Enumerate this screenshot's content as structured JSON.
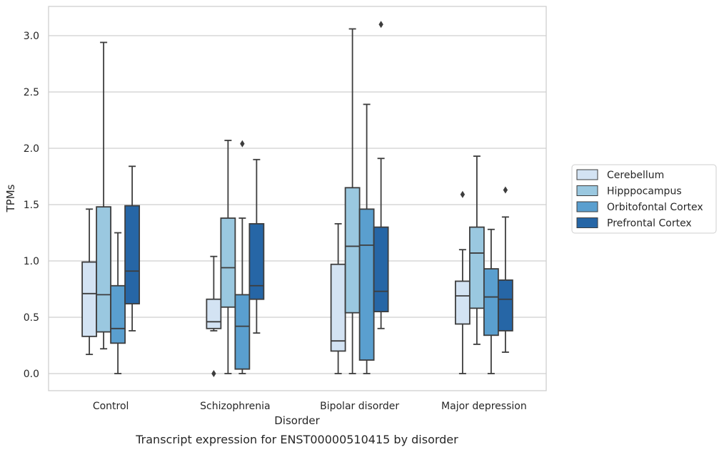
{
  "chart_data": {
    "type": "boxplot",
    "caption": "Transcript expression for ENST00000510415 by disorder",
    "xlabel": "Disorder",
    "ylabel": "TPMs",
    "ylim": [
      -0.15,
      3.25
    ],
    "yticks": [
      "0.0",
      "0.5",
      "1.0",
      "1.5",
      "2.0",
      "2.5",
      "3.0"
    ],
    "grid": "horizontal",
    "legend_position": "right",
    "categories": [
      "Control",
      "Schizophrenia",
      "Bipolar disorder",
      "Major depression"
    ],
    "series": [
      {
        "name": "Cerebellum",
        "color": "#d3e3f3",
        "boxes": [
          {
            "whislo": 0.17,
            "q1": 0.33,
            "med": 0.71,
            "q3": 0.99,
            "whishi": 1.46,
            "fliers": []
          },
          {
            "whislo": 0.38,
            "q1": 0.4,
            "med": 0.46,
            "q3": 0.66,
            "whishi": 1.04,
            "fliers": [
              0.0
            ]
          },
          {
            "whislo": 0.0,
            "q1": 0.2,
            "med": 0.29,
            "q3": 0.97,
            "whishi": 1.33,
            "fliers": []
          },
          {
            "whislo": 0.0,
            "q1": 0.44,
            "med": 0.69,
            "q3": 0.82,
            "whishi": 1.1,
            "fliers": [
              1.59
            ]
          }
        ]
      },
      {
        "name": "Hipppocampus",
        "color": "#9ac8e0",
        "boxes": [
          {
            "whislo": 0.22,
            "q1": 0.37,
            "med": 0.7,
            "q3": 1.48,
            "whishi": 2.94,
            "fliers": []
          },
          {
            "whislo": 0.0,
            "q1": 0.59,
            "med": 0.94,
            "q3": 1.38,
            "whishi": 2.07,
            "fliers": []
          },
          {
            "whislo": 0.0,
            "q1": 0.54,
            "med": 1.13,
            "q3": 1.65,
            "whishi": 3.06,
            "fliers": []
          },
          {
            "whislo": 0.26,
            "q1": 0.58,
            "med": 1.07,
            "q3": 1.3,
            "whishi": 1.93,
            "fliers": []
          }
        ]
      },
      {
        "name": "Orbitofontal Cortex",
        "color": "#5a9fcf",
        "boxes": [
          {
            "whislo": 0.0,
            "q1": 0.27,
            "med": 0.4,
            "q3": 0.78,
            "whishi": 1.25,
            "fliers": []
          },
          {
            "whislo": 0.0,
            "q1": 0.04,
            "med": 0.42,
            "q3": 0.7,
            "whishi": 1.38,
            "fliers": [
              2.04
            ]
          },
          {
            "whislo": 0.0,
            "q1": 0.12,
            "med": 1.14,
            "q3": 1.46,
            "whishi": 2.39,
            "fliers": []
          },
          {
            "whislo": 0.0,
            "q1": 0.34,
            "med": 0.68,
            "q3": 0.93,
            "whishi": 1.28,
            "fliers": []
          }
        ]
      },
      {
        "name": "Prefrontal Cortex",
        "color": "#2666a6",
        "boxes": [
          {
            "whislo": 0.38,
            "q1": 0.62,
            "med": 0.91,
            "q3": 1.49,
            "whishi": 1.84,
            "fliers": []
          },
          {
            "whislo": 0.36,
            "q1": 0.66,
            "med": 0.78,
            "q3": 1.33,
            "whishi": 1.9,
            "fliers": []
          },
          {
            "whislo": 0.4,
            "q1": 0.55,
            "med": 0.73,
            "q3": 1.3,
            "whishi": 1.91,
            "fliers": [
              3.1
            ]
          },
          {
            "whislo": 0.19,
            "q1": 0.38,
            "med": 0.66,
            "q3": 0.83,
            "whishi": 1.39,
            "fliers": [
              1.63
            ]
          }
        ]
      }
    ]
  },
  "colors": {
    "line": "#3d3d3d",
    "grid": "#cfcfcf",
    "frame": "#cfcfcf"
  }
}
